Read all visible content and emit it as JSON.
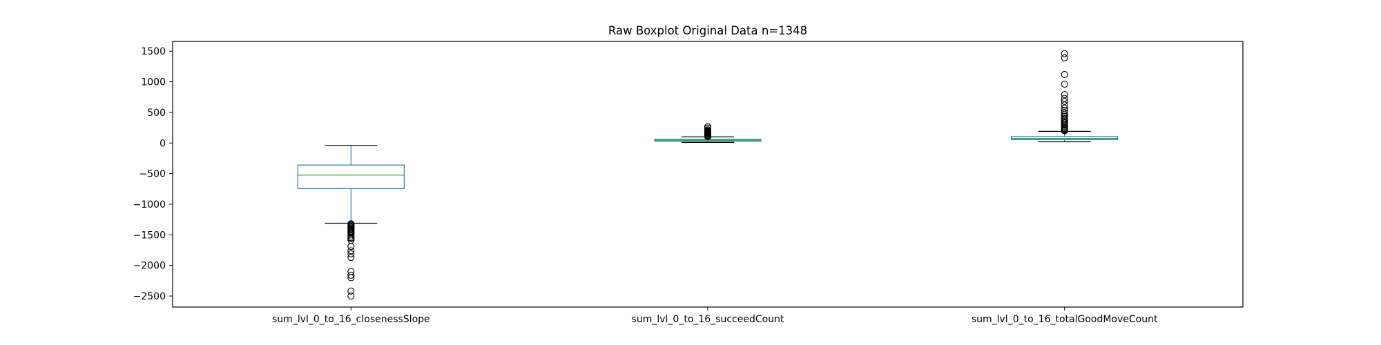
{
  "chart_data": {
    "type": "boxplot",
    "title": "Raw Boxplot Original Data n=1348",
    "xlabel": "",
    "ylabel": "",
    "ylim": [
      -2680,
      1660
    ],
    "yticks": [
      1500,
      1000,
      500,
      0,
      -500,
      -1000,
      -1500,
      -2000,
      -2500
    ],
    "grid": false,
    "colors": {
      "box": "#1f77b4",
      "median": "#2ca02c",
      "whisker": "#1f77b4",
      "cap": "#000000",
      "flier": "#000000"
    },
    "series": [
      {
        "name": "sum_lvl_0_to_16_closenessSlope",
        "whislo": -1310,
        "q1": -745,
        "median": -525,
        "q3": -360,
        "whishi": -40,
        "fliers": [
          -1320,
          -1330,
          -1345,
          -1360,
          -1375,
          -1390,
          -1405,
          -1420,
          -1440,
          -1455,
          -1470,
          -1490,
          -1520,
          -1545,
          -1560,
          -1590,
          -1690,
          -1760,
          -1810,
          -1870,
          -2100,
          -2160,
          -2200,
          -2420,
          -2500
        ]
      },
      {
        "name": "sum_lvl_0_to_16_succeedCount",
        "whislo": 10,
        "q1": 30,
        "median": 45,
        "q3": 60,
        "whishi": 100,
        "fliers": [
          105,
          110,
          120,
          130,
          140,
          150,
          160,
          170,
          180,
          190,
          200,
          215,
          245,
          265
        ]
      },
      {
        "name": "sum_lvl_0_to_16_totalGoodMoveCount",
        "whislo": 20,
        "q1": 55,
        "median": 75,
        "q3": 105,
        "whishi": 190,
        "fliers": [
          200,
          210,
          220,
          235,
          250,
          270,
          290,
          310,
          330,
          350,
          370,
          390,
          410,
          440,
          470,
          500,
          530,
          570,
          620,
          680,
          730,
          790,
          960,
          1120,
          1390,
          1460
        ]
      }
    ]
  }
}
